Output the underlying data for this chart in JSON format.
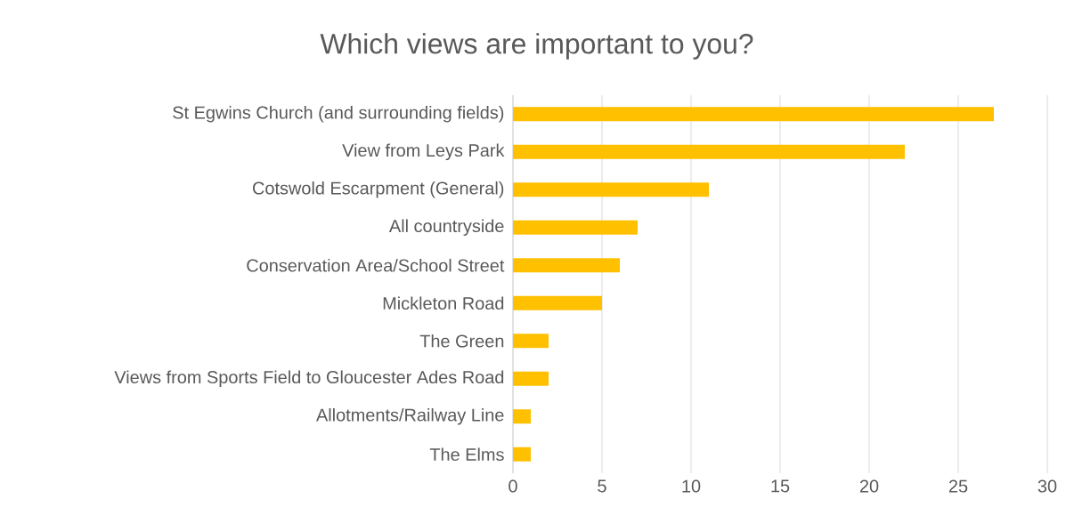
{
  "chart_data": {
    "type": "bar",
    "orientation": "horizontal",
    "title": "Which views are important to you?",
    "categories": [
      "St Egwins Church (and surrounding fields)",
      "View from Leys Park",
      "Cotswold Escarpment (General)",
      "All countryside",
      "Conservation Area/School Street",
      "Mickleton Road",
      "The Green",
      "Views from Sports Field to Gloucester Ades Road",
      "Allotments/Railway Line",
      "The Elms"
    ],
    "values": [
      27,
      22,
      11,
      7,
      6,
      5,
      2,
      2,
      1,
      1
    ],
    "color": "#ffc000",
    "xlim": [
      0,
      30
    ],
    "xticks": [
      0,
      5,
      10,
      15,
      20,
      25,
      30
    ],
    "grid": "x"
  }
}
